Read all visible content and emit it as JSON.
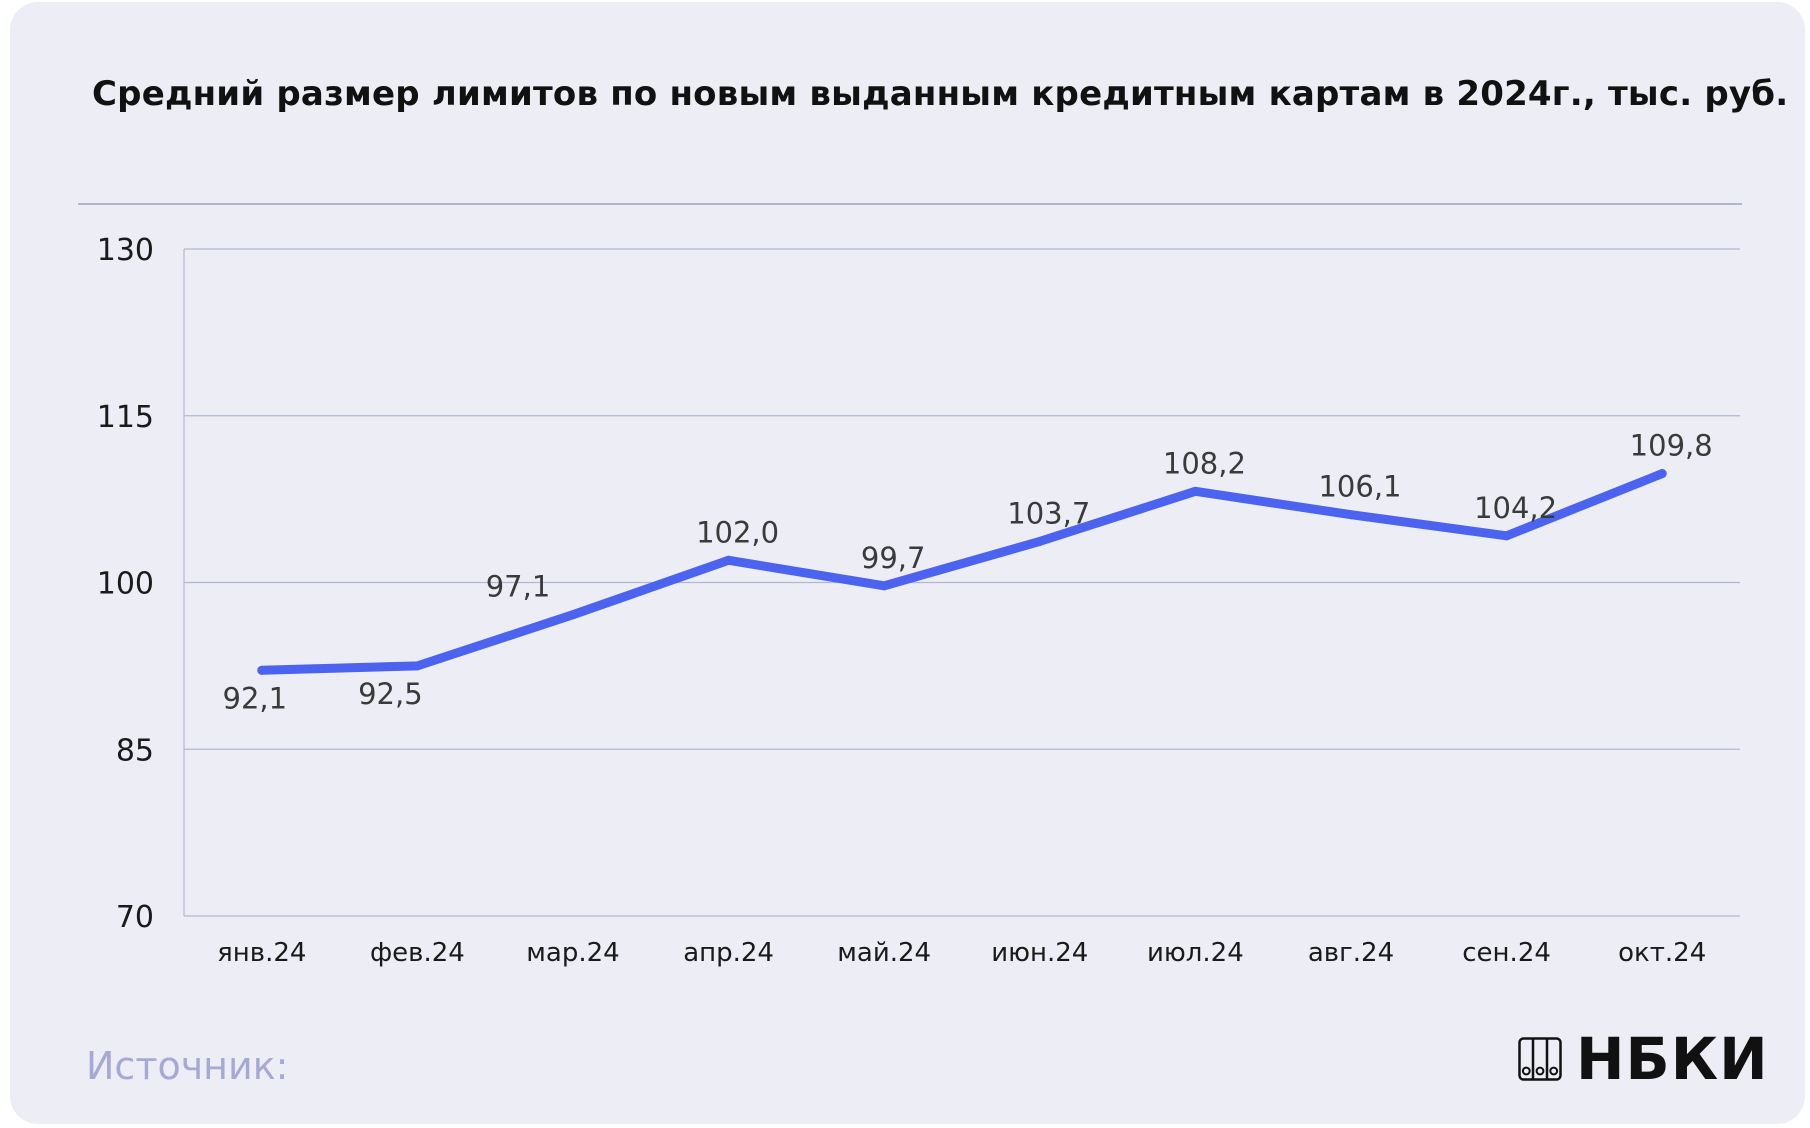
{
  "header": {
    "title": "Средний размер лимитов по новым выданным кредитным картам в 2024г., тыс. руб."
  },
  "footer": {
    "source_label": "Источник:",
    "logo_text": "НБКИ",
    "logo_icon": "binders-icon"
  },
  "colors": {
    "background": "#ecedf5",
    "line": "#4c63f0",
    "grid": "#b4b7d4",
    "source": "#a6a9d4"
  },
  "chart_data": {
    "type": "line",
    "title": "Средний размер лимитов по новым выданным кредитным картам в 2024г., тыс. руб.",
    "xlabel": "",
    "ylabel": "",
    "categories": [
      "янв.24",
      "фев.24",
      "мар.24",
      "апр.24",
      "май.24",
      "июн.24",
      "июл.24",
      "авг.24",
      "сен.24",
      "окт.24"
    ],
    "series": [
      {
        "values": [
          92.1,
          92.5,
          97.1,
          102.0,
          99.7,
          103.7,
          108.2,
          106.1,
          104.2,
          109.8
        ],
        "labels": [
          "92,1",
          "92,5",
          "97,1",
          "102,0",
          "99,7",
          "103,7",
          "108,2",
          "106,1",
          "104,2",
          "109,8"
        ]
      }
    ],
    "ylim": [
      70,
      130
    ],
    "yticks": [
      70,
      85,
      100,
      115,
      130
    ],
    "grid": true,
    "legend": "none"
  }
}
